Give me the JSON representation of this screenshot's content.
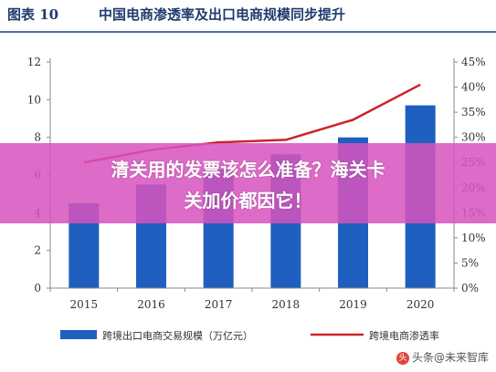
{
  "header": {
    "fig_no": "图表 10",
    "title": "中国电商渗透率及出口电商规模同步提升"
  },
  "chart_data": {
    "type": "bar",
    "categories": [
      "2015",
      "2016",
      "2017",
      "2018",
      "2019",
      "2020"
    ],
    "series": [
      {
        "name": "跨境出口电商交易规模（万亿元）",
        "type": "bar",
        "axis": "left",
        "values": [
          4.5,
          5.5,
          6.3,
          7.1,
          8.0,
          9.7
        ]
      },
      {
        "name": "跨境电商渗透率",
        "type": "line",
        "axis": "right",
        "values": [
          25.0,
          27.5,
          29.0,
          29.5,
          33.5,
          40.5
        ]
      }
    ],
    "y_left": {
      "min": 0,
      "max": 12,
      "ticks": [
        "0",
        "2",
        "4",
        "6",
        "8",
        "10",
        "12"
      ]
    },
    "y_right": {
      "min": 0,
      "max": 45,
      "ticks": [
        "0%",
        "5%",
        "10%",
        "15%",
        "20%",
        "25%",
        "30%",
        "35%",
        "40%",
        "45%"
      ]
    },
    "grid": false,
    "legend_position": "bottom",
    "colors": {
      "bar": "#1f5fbf",
      "line": "#cc2229"
    }
  },
  "overlay": {
    "line1": "清关用的发票该怎么准备？海关卡",
    "line2": "关加价都因它！"
  },
  "watermark": {
    "icon": "头",
    "text": "头条@未来智库"
  }
}
